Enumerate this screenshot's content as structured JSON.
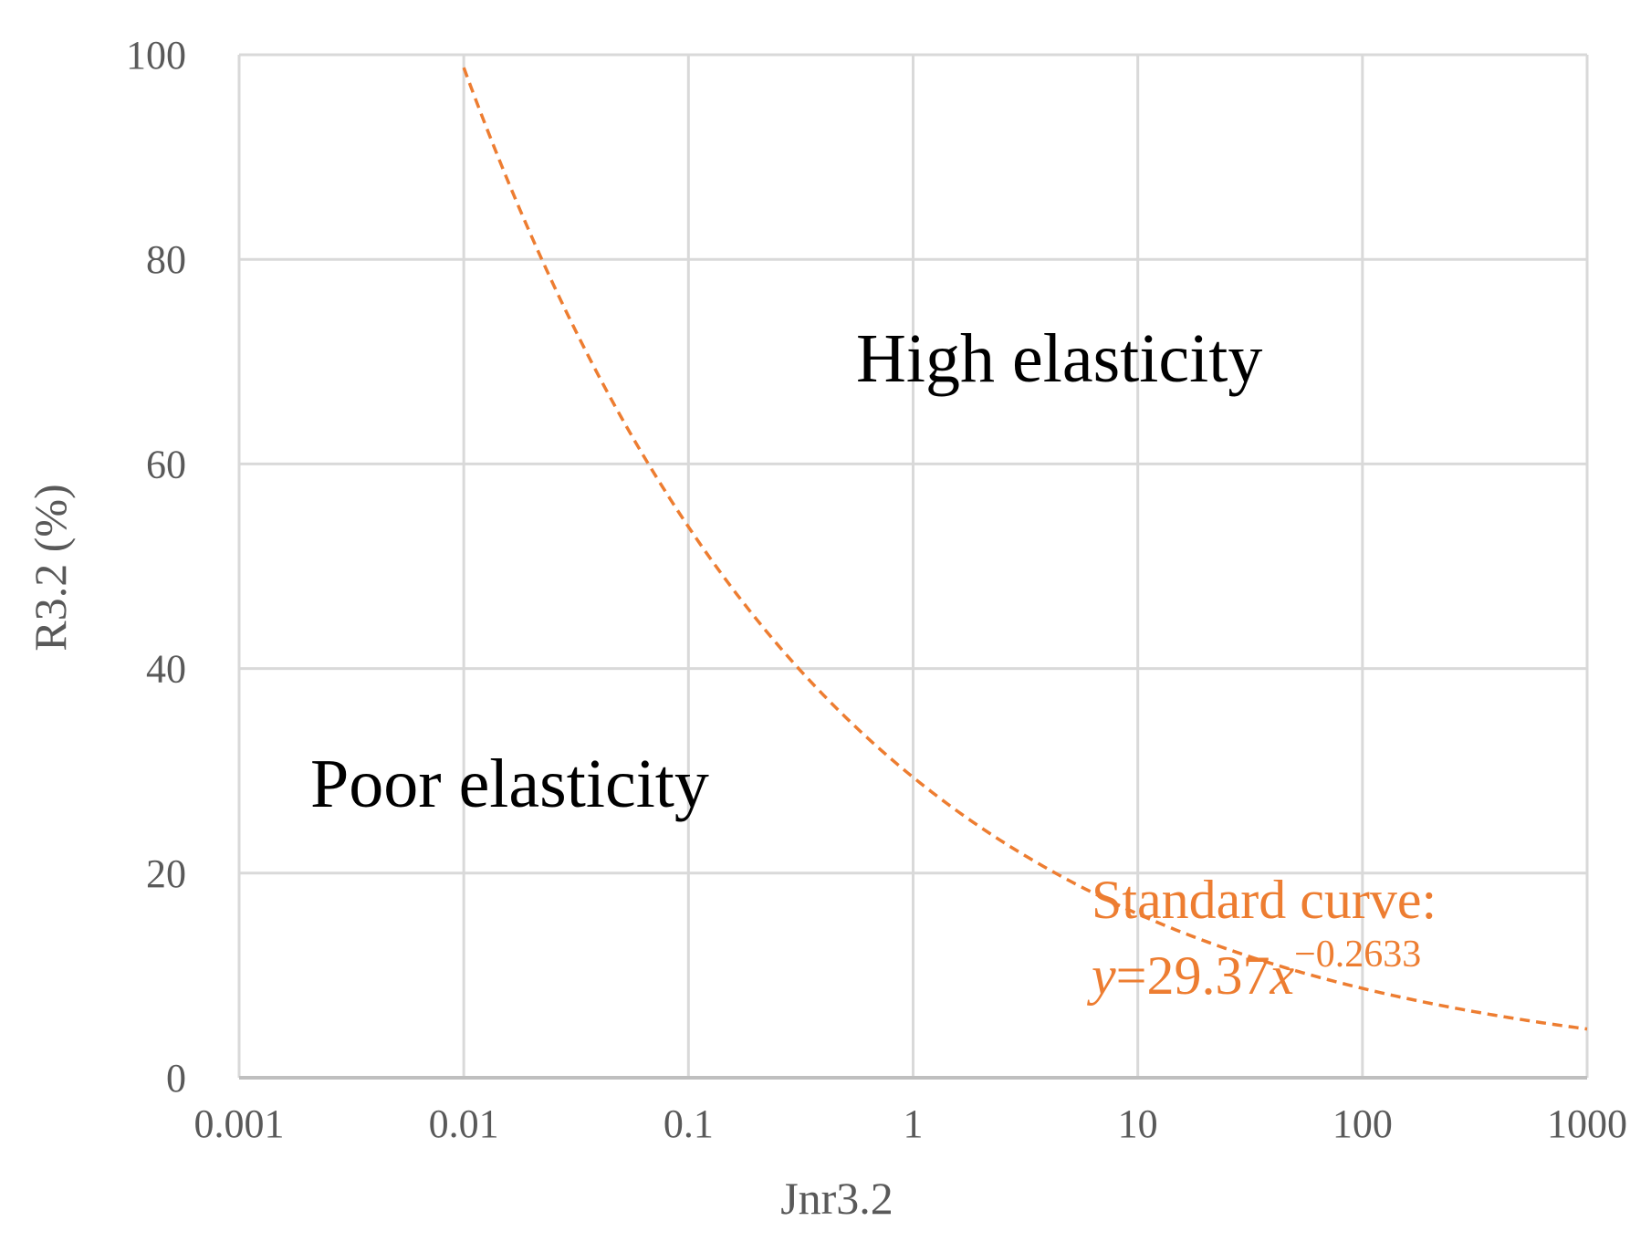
{
  "chart_data": {
    "type": "line",
    "title": "",
    "xlabel": "Jnr3.2",
    "ylabel": "R3.2 (%)",
    "x_scale": "log",
    "xlim": [
      0.001,
      1000
    ],
    "ylim": [
      0,
      100
    ],
    "grid": true,
    "x_ticks": [
      0.001,
      0.01,
      0.1,
      1,
      10,
      100,
      1000
    ],
    "x_tick_labels": [
      "0.001",
      "0.01",
      "0.1",
      "1",
      "10",
      "100",
      "1000"
    ],
    "y_ticks": [
      0,
      20,
      40,
      60,
      80,
      100
    ],
    "y_tick_labels": [
      "0",
      "20",
      "40",
      "60",
      "80",
      "100"
    ],
    "series": [
      {
        "curve": "power",
        "coefficient": 29.37,
        "exponent": -0.2633,
        "x_range": [
          0.01,
          1000
        ],
        "color": "#ED7D31",
        "style": "dashed"
      }
    ],
    "annotations": {
      "high": "High elasticity",
      "poor": "Poor elasticity",
      "curve_label": "Standard curve:",
      "equation_y": "y",
      "equation_body": "=29.37",
      "equation_x": "x",
      "equation_exponent": "−0.2633"
    },
    "colors": {
      "grid": "#d9d9d9",
      "axis": "#bfbfbf",
      "tick_text": "#595959",
      "curve": "#ED7D31",
      "region_text": "#000000"
    }
  }
}
